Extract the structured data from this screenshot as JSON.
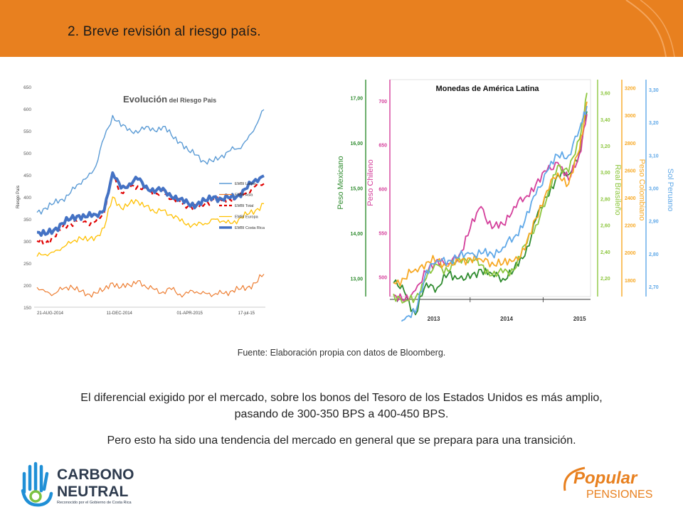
{
  "header": {
    "title": "2. Breve revisión al riesgo país."
  },
  "chart_data": [
    {
      "type": "line",
      "title": "Evolución del Riesgo Pais",
      "title_bold": "Evolución",
      "title_rest": " del Riesgo Pais",
      "ylabel": "Riesgo País",
      "ylim": [
        150,
        650
      ],
      "yticks": [
        150,
        200,
        250,
        300,
        350,
        400,
        450,
        500,
        550,
        600,
        650
      ],
      "x_tick_labels": [
        "21-AUG-2014",
        "11-DEC-2014",
        "01-APR-2015",
        "17-jul-15"
      ],
      "legend_position": "right",
      "x": [
        "2014-08-21",
        "2014-09-04",
        "2014-09-18",
        "2014-10-02",
        "2014-10-16",
        "2014-10-30",
        "2014-11-13",
        "2014-11-27",
        "2014-12-11",
        "2014-12-25",
        "2015-01-08",
        "2015-01-22",
        "2015-02-05",
        "2015-02-19",
        "2015-03-05",
        "2015-03-19",
        "2015-04-02",
        "2015-04-16",
        "2015-04-30",
        "2015-05-14",
        "2015-05-28",
        "2015-06-11",
        "2015-06-25",
        "2015-07-09",
        "2015-07-23",
        "2015-08-06",
        "2015-08-20",
        "2015-08-26"
      ],
      "series": [
        {
          "name": "EMBI Latino",
          "color": "#5B9BD5",
          "style": "solid",
          "width": 1.4,
          "values": [
            365,
            375,
            385,
            395,
            410,
            430,
            445,
            470,
            535,
            585,
            560,
            555,
            545,
            560,
            550,
            560,
            540,
            525,
            505,
            495,
            480,
            480,
            495,
            505,
            510,
            530,
            560,
            598
          ]
        },
        {
          "name": "EMBI Asia",
          "color": "#ED7D31",
          "style": "solid",
          "width": 1.2,
          "values": [
            195,
            185,
            180,
            190,
            200,
            185,
            180,
            182,
            190,
            205,
            195,
            200,
            210,
            195,
            190,
            185,
            190,
            180,
            182,
            185,
            182,
            178,
            182,
            186,
            190,
            195,
            205,
            225
          ]
        },
        {
          "name": "EMBI Total",
          "color": "#E00000",
          "style": "dashed",
          "width": 2.2,
          "values": [
            300,
            295,
            310,
            330,
            340,
            350,
            340,
            345,
            365,
            455,
            410,
            420,
            425,
            420,
            405,
            415,
            395,
            390,
            380,
            375,
            385,
            395,
            392,
            395,
            400,
            410,
            425,
            430
          ]
        },
        {
          "name": "EMBI Europa",
          "color": "#FFC000",
          "style": "solid",
          "width": 1.3,
          "values": [
            265,
            270,
            275,
            285,
            295,
            310,
            300,
            310,
            330,
            400,
            375,
            385,
            390,
            380,
            365,
            370,
            360,
            345,
            340,
            335,
            340,
            350,
            345,
            340,
            350,
            360,
            370,
            385
          ]
        },
        {
          "name": "EMBI Costa Rica",
          "color": "#4472C4",
          "style": "solid",
          "width": 4,
          "values": [
            320,
            315,
            325,
            340,
            350,
            358,
            355,
            360,
            370,
            455,
            420,
            430,
            440,
            425,
            410,
            420,
            400,
            395,
            385,
            382,
            392,
            400,
            395,
            398,
            405,
            420,
            440,
            448
          ]
        }
      ]
    },
    {
      "type": "line",
      "title": "Monedas de América Latina",
      "x_tick_labels": [
        "2013",
        "2014",
        "2015"
      ],
      "x_range": [
        2012.9,
        2015.65
      ],
      "axes": [
        {
          "name": "Peso Mexicano",
          "color": "#2E8B2E",
          "range": [
            12.6,
            17.4
          ],
          "ticks": [
            "13,00",
            "14,00",
            "15,00",
            "16,00",
            "17,00"
          ]
        },
        {
          "name": "Peso Chileno",
          "color": "#D43F9B",
          "range": [
            478,
            724
          ],
          "ticks": [
            "500",
            "550",
            "600",
            "650",
            "700"
          ]
        },
        {
          "name": "Real Brasileño",
          "color": "#8DC63F",
          "range": [
            2.06,
            3.7
          ],
          "ticks": [
            "2,20",
            "2,40",
            "2,60",
            "2,80",
            "3,00",
            "3,20",
            "3,40",
            "3,60"
          ]
        },
        {
          "name": "Peso Colombiano",
          "color": "#F7A823",
          "range": [
            1680,
            3260
          ],
          "ticks": [
            "1800",
            "2000",
            "2200",
            "2400",
            "2600",
            "2800",
            "3000",
            "3200"
          ]
        },
        {
          "name": "Sol Peruano",
          "color": "#5FA8E8",
          "range": [
            2.67,
            3.33
          ],
          "ticks": [
            "2,70",
            "2,80",
            "2,90",
            "3,00",
            "3,10",
            "3,20",
            "3,30"
          ]
        }
      ],
      "x": [
        2012.95,
        2013.1,
        2013.25,
        2013.4,
        2013.55,
        2013.7,
        2013.85,
        2014.0,
        2014.15,
        2014.3,
        2014.45,
        2014.6,
        2014.75,
        2014.9,
        2015.05,
        2015.2,
        2015.35,
        2015.5,
        2015.6
      ],
      "series": [
        {
          "name": "Peso Mexicano",
          "color": "#2E8B2E",
          "axis": 0,
          "values": [
            12.9,
            12.7,
            12.2,
            12.9,
            12.8,
            13.1,
            13.0,
            13.0,
            13.2,
            13.1,
            13.0,
            13.2,
            13.5,
            14.3,
            14.8,
            15.3,
            15.3,
            15.8,
            16.7
          ]
        },
        {
          "name": "Peso Chileno",
          "color": "#D43F9B",
          "axis": 1,
          "values": [
            480,
            472,
            485,
            505,
            520,
            515,
            525,
            555,
            580,
            555,
            560,
            580,
            590,
            605,
            620,
            630,
            610,
            640,
            685
          ]
        },
        {
          "name": "Real Brasileño",
          "color": "#8DC63F",
          "axis": 2,
          "values": [
            2.08,
            2.02,
            2.05,
            2.2,
            2.3,
            2.25,
            2.35,
            2.35,
            2.3,
            2.22,
            2.24,
            2.26,
            2.45,
            2.6,
            2.8,
            3.05,
            3.0,
            3.25,
            3.6
          ]
        },
        {
          "name": "Peso Colombiano",
          "color": "#F7A823",
          "axis": 3,
          "values": [
            1780,
            1810,
            1880,
            1930,
            1940,
            1900,
            1930,
            1960,
            1950,
            1930,
            1920,
            1940,
            2020,
            2250,
            2450,
            2580,
            2500,
            2750,
            3100
          ]
        },
        {
          "name": "Sol Peruano",
          "color": "#5FA8E8",
          "axis": 4,
          "values": [
            2.57,
            2.6,
            2.62,
            2.75,
            2.78,
            2.78,
            2.79,
            2.8,
            2.8,
            2.8,
            2.82,
            2.85,
            2.9,
            2.98,
            3.05,
            3.1,
            3.1,
            3.18,
            3.25
          ]
        }
      ]
    }
  ],
  "source": "Fuente: Elaboración propia  con datos de Bloomberg.",
  "paragraph1": "El diferencial  exigido por el mercado, sobre los bonos del Tesoro de los Estados Unidos es más amplio,  pasando de 300-350 BPS a 400-450 BPS.",
  "paragraph2": "Pero esto ha sido una tendencia del mercado en general que se prepara para una transición.",
  "logos": {
    "left_line1": "CARBONO",
    "left_line2": "NEUTRAL",
    "left_caption": "Reconocido por el Gobierno de Costa Rica",
    "right_brand": "Popular",
    "right_sub": "PENSIONES"
  },
  "colors": {
    "banner": "#E8801F",
    "accent_orange": "#E8801F",
    "logo_dark": "#2E3B4E",
    "logo_blue": "#1F8FD6",
    "logo_green": "#7CC242"
  }
}
